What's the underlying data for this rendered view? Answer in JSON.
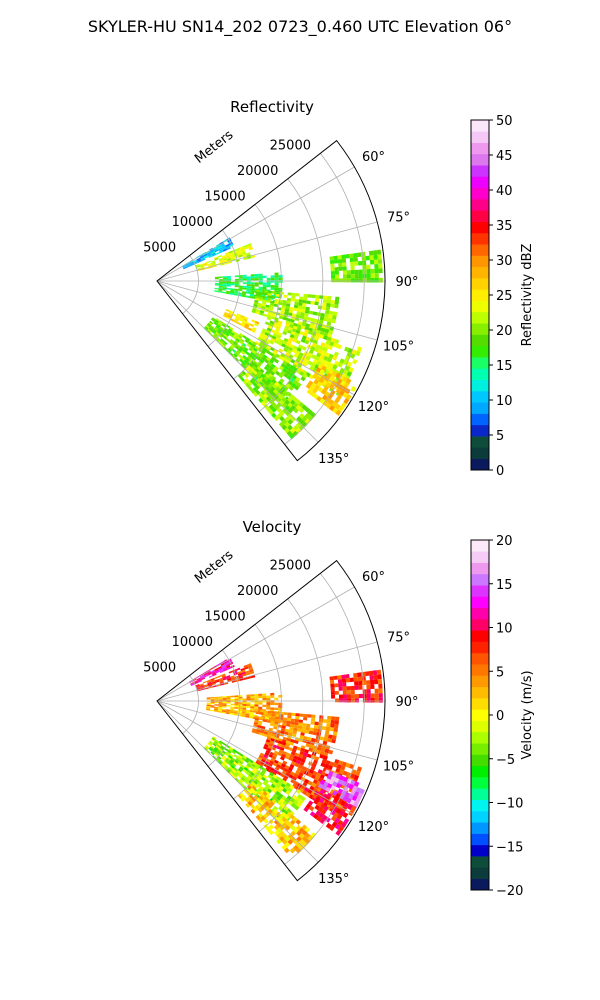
{
  "figure": {
    "title": "SKYLER-HU  SN14_202  0723_0.460 UTC Elevation 06°"
  },
  "chart_data": [
    {
      "type": "polar-sector-heatmap",
      "title": "Reflectivity",
      "range_axis_label": "Meters",
      "range_ticks": [
        "5000",
        "10000",
        "15000",
        "20000",
        "25000"
      ],
      "range_tick_values": [
        5000,
        10000,
        15000,
        20000,
        25000
      ],
      "range_max": 27500,
      "azimuth_ticks": [
        "60°",
        "75°",
        "90°",
        "105°",
        "120°",
        "135°"
      ],
      "azimuth_tick_values": [
        60,
        75,
        90,
        105,
        120,
        135
      ],
      "azimuth_range": [
        52,
        142
      ],
      "grid": true,
      "colorbar": {
        "label": "Reflectivity dBZ",
        "min": 0,
        "max": 50,
        "ticks": [
          "0",
          "5",
          "10",
          "15",
          "20",
          "25",
          "30",
          "35",
          "40",
          "45",
          "50"
        ],
        "tick_values": [
          0,
          5,
          10,
          15,
          20,
          25,
          30,
          35,
          40,
          45,
          50
        ],
        "colors": [
          "#0a1a5c",
          "#0b3b3b",
          "#0d4d3a",
          "#0a28c8",
          "#0064ff",
          "#00a8ff",
          "#00c8ff",
          "#00f0e0",
          "#00ffb0",
          "#1aff66",
          "#33ee00",
          "#55dd00",
          "#88ee00",
          "#bbff00",
          "#eeff00",
          "#ffee00",
          "#ffd200",
          "#ffb400",
          "#ff9600",
          "#ff6600",
          "#ff3300",
          "#ff0000",
          "#ff0044",
          "#ff0088",
          "#ff00cc",
          "#ee00ff",
          "#cc33ff",
          "#dd77ee",
          "#ee99ee",
          "#f5c8f5",
          "#fbe6fb"
        ]
      },
      "echo_regions": [
        {
          "az": [
            59,
            66
          ],
          "r": [
            3500,
            10000
          ],
          "value": 10
        },
        {
          "az": [
            68,
            76
          ],
          "r": [
            5000,
            12000
          ],
          "value": 23
        },
        {
          "az": [
            86,
            100
          ],
          "r": [
            7000,
            15000
          ],
          "value": 16
        },
        {
          "az": [
            95,
            108
          ],
          "r": [
            12000,
            22000
          ],
          "value": 21
        },
        {
          "az": [
            108,
            122
          ],
          "r": [
            14000,
            26000
          ],
          "value": 22
        },
        {
          "az": [
            117,
            126
          ],
          "r": [
            22000,
            27000
          ],
          "value": 27
        },
        {
          "az": [
            122,
            134
          ],
          "r": [
            8000,
            21000
          ],
          "value": 19
        },
        {
          "az": [
            130,
            139
          ],
          "r": [
            15000,
            25000
          ],
          "value": 20
        },
        {
          "az": [
            82,
            90
          ],
          "r": [
            21000,
            27000
          ],
          "value": 19
        },
        {
          "az": [
            112,
            118
          ],
          "r": [
            9000,
            13000
          ],
          "value": 26
        }
      ]
    },
    {
      "type": "polar-sector-heatmap",
      "title": "Velocity",
      "range_axis_label": "Meters",
      "range_ticks": [
        "5000",
        "10000",
        "15000",
        "20000",
        "25000"
      ],
      "range_tick_values": [
        5000,
        10000,
        15000,
        20000,
        25000
      ],
      "range_max": 27500,
      "azimuth_ticks": [
        "60°",
        "75°",
        "90°",
        "105°",
        "120°",
        "135°"
      ],
      "azimuth_tick_values": [
        60,
        75,
        90,
        105,
        120,
        135
      ],
      "azimuth_range": [
        52,
        142
      ],
      "grid": true,
      "colorbar": {
        "label": "Velocity (m/s)",
        "min": -20,
        "max": 20,
        "ticks": [
          "−20",
          "−15",
          "−10",
          "−5",
          "0",
          "5",
          "10",
          "15",
          "20"
        ],
        "tick_values": [
          -20,
          -15,
          -10,
          -5,
          0,
          5,
          10,
          15,
          20
        ],
        "colors": [
          "#0a1a5c",
          "#0b3b3b",
          "#0d4d3a",
          "#0000c8",
          "#0050ff",
          "#0096ff",
          "#00d2ff",
          "#00f5f0",
          "#00ff96",
          "#00ff3c",
          "#00ee00",
          "#44dd00",
          "#77ee00",
          "#aaff00",
          "#ddff00",
          "#ffff00",
          "#ffdd00",
          "#ffbb00",
          "#ff9900",
          "#ff7700",
          "#ff5500",
          "#ff2200",
          "#ff0000",
          "#ff0066",
          "#ff00aa",
          "#ff00ff",
          "#dd33ff",
          "#cc77ff",
          "#ee99ee",
          "#f5ccf5",
          "#fbe8fb"
        ]
      },
      "echo_regions": [
        {
          "az": [
            59,
            66
          ],
          "r": [
            4500,
            10000
          ],
          "value": 12
        },
        {
          "az": [
            68,
            76
          ],
          "r": [
            5000,
            12000
          ],
          "value": 8
        },
        {
          "az": [
            86,
            100
          ],
          "r": [
            6000,
            15000
          ],
          "value": 3
        },
        {
          "az": [
            95,
            108
          ],
          "r": [
            12000,
            22000
          ],
          "value": 5
        },
        {
          "az": [
            108,
            122
          ],
          "r": [
            14000,
            26000
          ],
          "value": 7
        },
        {
          "az": [
            117,
            126
          ],
          "r": [
            22000,
            27000
          ],
          "value": 9
        },
        {
          "az": [
            122,
            134
          ],
          "r": [
            8000,
            21000
          ],
          "value": -3
        },
        {
          "az": [
            130,
            139
          ],
          "r": [
            15000,
            25000
          ],
          "value": 2
        },
        {
          "az": [
            82,
            90
          ],
          "r": [
            21000,
            27000
          ],
          "value": 8
        },
        {
          "az": [
            112,
            118
          ],
          "r": [
            22000,
            27000
          ],
          "value": 15
        }
      ]
    }
  ]
}
